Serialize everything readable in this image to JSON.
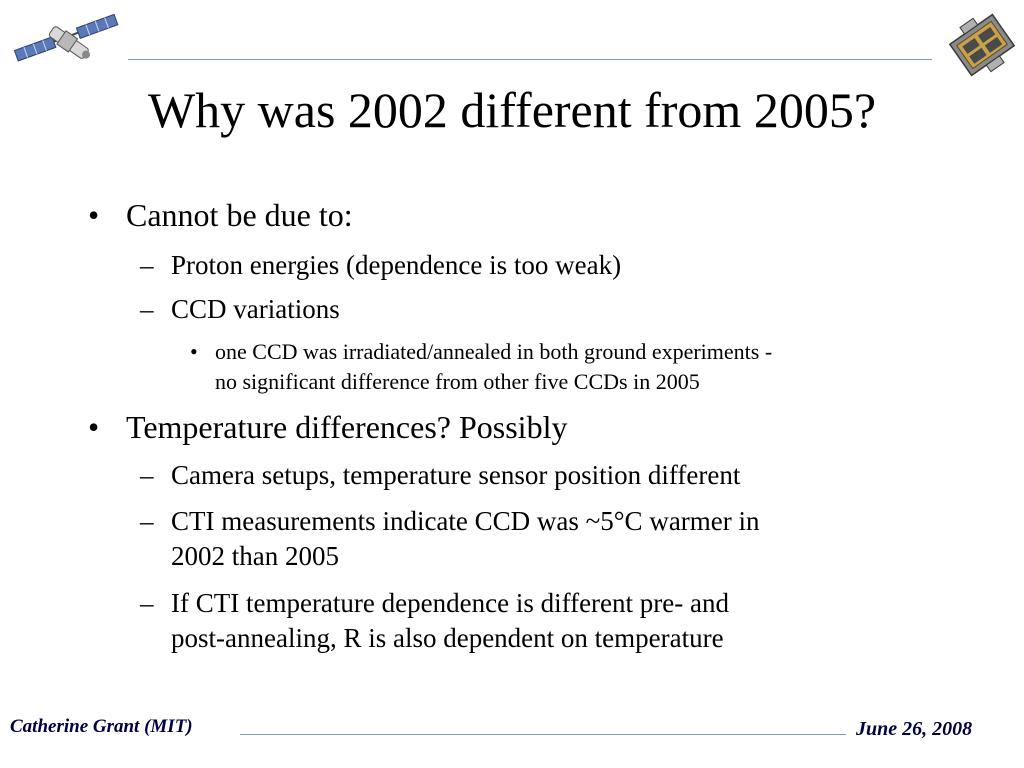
{
  "slide": {
    "title": "Why was 2002 different from 2005?",
    "logos": {
      "left": "chandra-satellite-icon",
      "right": "ccd-camera-icon"
    },
    "bullets": [
      {
        "marker": "•",
        "text": "Cannot be due to:"
      },
      {
        "marker": "–",
        "text": "Proton energies (dependence is too weak)"
      },
      {
        "marker": "–",
        "text": "CCD variations"
      },
      {
        "marker": "•",
        "lines": [
          "one CCD was irradiated/annealed in both ground experiments -",
          "no significant difference from other five CCDs in 2005"
        ]
      },
      {
        "marker": "•",
        "text": "Temperature differences?  Possibly"
      },
      {
        "marker": "–",
        "text": "Camera setups, temperature sensor position different"
      },
      {
        "marker": "–",
        "lines": [
          "CTI measurements indicate CCD was ~5°C warmer in",
          "2002 than 2005"
        ]
      },
      {
        "marker": "–",
        "lines": [
          "If CTI temperature dependence is different pre- and",
          "post-annealing, R is also dependent on temperature"
        ]
      }
    ],
    "footer": {
      "author": "Catherine Grant (MIT)",
      "date": "June 26, 2008"
    },
    "colors": {
      "rule": "#7f9db9",
      "footer_text": "#000040"
    }
  }
}
